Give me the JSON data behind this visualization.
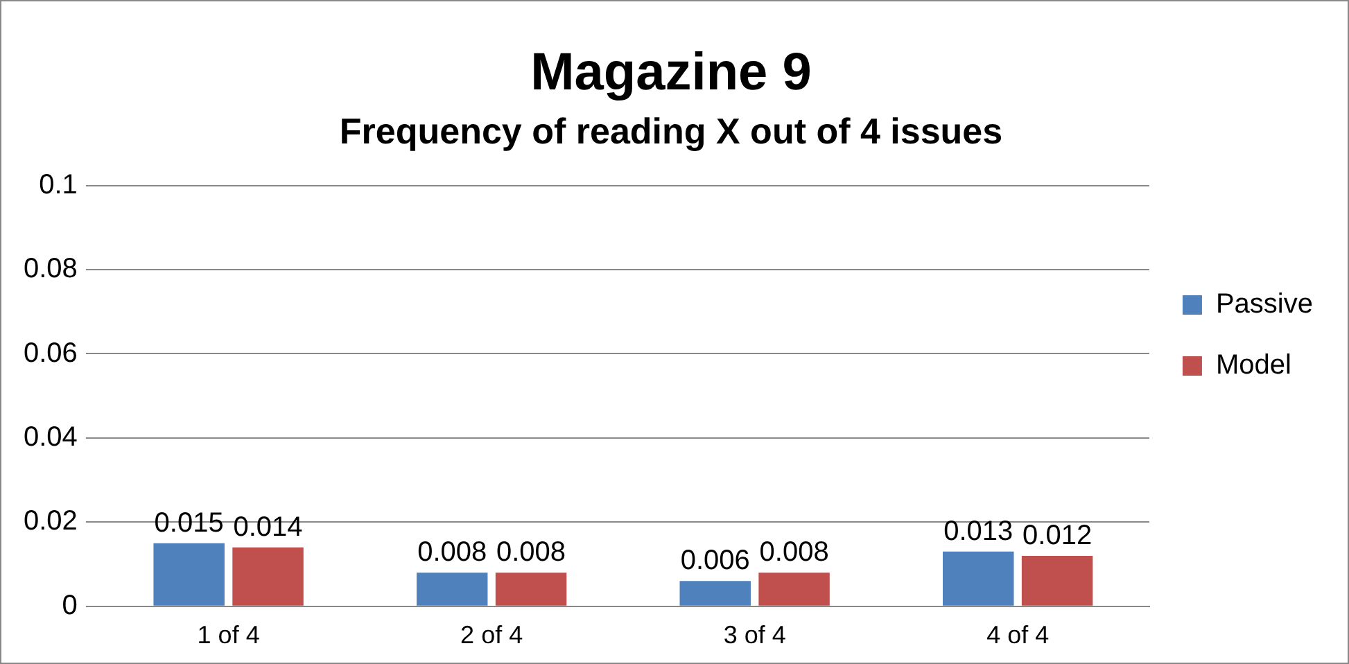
{
  "chart_data": {
    "type": "bar",
    "title": "Magazine 9",
    "subtitle": "Frequency of reading X out of 4 issues",
    "categories": [
      "1 of 4",
      "2 of 4",
      "3 of 4",
      "4 of 4"
    ],
    "series": [
      {
        "name": "Passive",
        "color": "#4f81bd",
        "values": [
          0.015,
          0.008,
          0.006,
          0.013
        ]
      },
      {
        "name": "Model",
        "color": "#c0504d",
        "values": [
          0.014,
          0.008,
          0.008,
          0.012
        ]
      }
    ],
    "ylim": [
      0,
      0.1
    ],
    "yticks": [
      0,
      0.02,
      0.04,
      0.06,
      0.08,
      0.1
    ],
    "grid": "y",
    "legend": "right",
    "data_labels": true
  }
}
